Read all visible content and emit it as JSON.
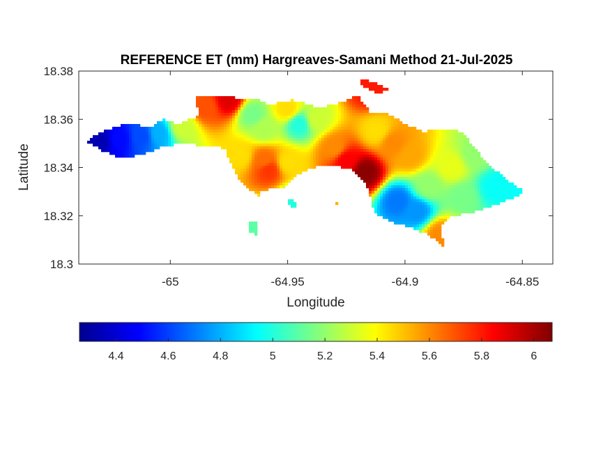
{
  "title": "REFERENCE ET (mm) Hargreaves-Samani Method  21-Jul-2025",
  "xlabel": "Longitude",
  "ylabel": "Latitude",
  "x_ticks": [
    "-65",
    "-64.95",
    "-64.9",
    "-64.85"
  ],
  "y_ticks": [
    "18.38",
    "18.36",
    "18.34",
    "18.32",
    "18.3"
  ],
  "colorbar_ticks": [
    "4.4",
    "4.6",
    "4.8",
    "5",
    "5.2",
    "5.4",
    "5.6",
    "5.8",
    "6"
  ],
  "colormap": "jet",
  "chart_data": {
    "type": "heatmap",
    "title": "REFERENCE ET (mm) Hargreaves-Samani Method  21-Jul-2025",
    "xlabel": "Longitude",
    "ylabel": "Latitude",
    "xlim": [
      -65.039,
      -64.837
    ],
    "ylim": [
      18.3,
      18.38
    ],
    "x_ticks": [
      -65,
      -64.95,
      -64.9,
      -64.85
    ],
    "y_ticks": [
      18.3,
      18.32,
      18.34,
      18.36,
      18.38
    ],
    "colorbar": {
      "min": 4.26,
      "max": 6.07,
      "ticks": [
        4.4,
        4.6,
        4.8,
        5,
        5.2,
        5.4,
        5.6,
        5.8,
        6
      ],
      "orientation": "horizontal",
      "position": "bottom"
    },
    "grid": false,
    "island_outline": [
      [
        -65.036,
        18.351
      ],
      [
        -65.029,
        18.355
      ],
      [
        -65.019,
        18.358
      ],
      [
        -65.008,
        18.357
      ],
      [
        -65.003,
        18.36
      ],
      [
        -64.997,
        18.358
      ],
      [
        -64.988,
        18.3615
      ],
      [
        -64.989,
        18.369
      ],
      [
        -64.98,
        18.37
      ],
      [
        -64.972,
        18.369
      ],
      [
        -64.962,
        18.368
      ],
      [
        -64.958,
        18.366
      ],
      [
        -64.948,
        18.368
      ],
      [
        -64.937,
        18.365
      ],
      [
        -64.93,
        18.366
      ],
      [
        -64.925,
        18.368
      ],
      [
        -64.92,
        18.37
      ],
      [
        -64.915,
        18.363
      ],
      [
        -64.908,
        18.363
      ],
      [
        -64.9,
        18.358
      ],
      [
        -64.892,
        18.355
      ],
      [
        -64.883,
        18.356
      ],
      [
        -64.876,
        18.355
      ],
      [
        -64.87,
        18.348
      ],
      [
        -64.866,
        18.343
      ],
      [
        -64.858,
        18.336
      ],
      [
        -64.849,
        18.33
      ],
      [
        -64.855,
        18.327
      ],
      [
        -64.866,
        18.323
      ],
      [
        -64.872,
        18.321
      ],
      [
        -64.88,
        18.32
      ],
      [
        -64.885,
        18.315
      ],
      [
        -64.883,
        18.307
      ],
      [
        -64.89,
        18.312
      ],
      [
        -64.897,
        18.315
      ],
      [
        -64.905,
        18.317
      ],
      [
        -64.913,
        18.321
      ],
      [
        -64.916,
        18.332
      ],
      [
        -64.922,
        18.339
      ],
      [
        -64.932,
        18.341
      ],
      [
        -64.939,
        18.34
      ],
      [
        -64.946,
        18.337
      ],
      [
        -64.951,
        18.332
      ],
      [
        -64.958,
        18.331
      ],
      [
        -64.965,
        18.33
      ],
      [
        -64.97,
        18.334
      ],
      [
        -64.973,
        18.339
      ],
      [
        -64.977,
        18.348
      ],
      [
        -64.985,
        18.349
      ],
      [
        -64.996,
        18.35
      ],
      [
        -65.005,
        18.348
      ],
      [
        -65.013,
        18.345
      ],
      [
        -65.021,
        18.344
      ],
      [
        -65.029,
        18.347
      ],
      [
        -65.036,
        18.351
      ]
    ],
    "islets": [
      [
        [
          -64.919,
          18.377
        ],
        [
          -64.912,
          18.375
        ],
        [
          -64.906,
          18.372
        ],
        [
          -64.912,
          18.371
        ],
        [
          -64.919,
          18.374
        ]
      ],
      [
        [
          -64.95,
          18.327
        ],
        [
          -64.946,
          18.326
        ],
        [
          -64.946,
          18.323
        ],
        [
          -64.949,
          18.323
        ]
      ],
      [
        [
          -64.966,
          18.318
        ],
        [
          -64.963,
          18.318
        ],
        [
          -64.963,
          18.312
        ],
        [
          -64.966,
          18.313
        ]
      ],
      [
        [
          -64.93,
          18.326
        ],
        [
          -64.928,
          18.326
        ],
        [
          -64.928,
          18.324
        ]
      ],
      [
        [
          -64.964,
          18.33
        ],
        [
          -64.962,
          18.33
        ],
        [
          -64.962,
          18.327
        ]
      ]
    ],
    "value_field_anchors": [
      {
        "lon": -65.03,
        "lat": 18.351,
        "value": 4.35
      },
      {
        "lon": -65.022,
        "lat": 18.352,
        "value": 4.5
      },
      {
        "lon": -65.012,
        "lat": 18.353,
        "value": 4.62
      },
      {
        "lon": -65.005,
        "lat": 18.354,
        "value": 4.8
      },
      {
        "lon": -64.995,
        "lat": 18.357,
        "value": 5.3
      },
      {
        "lon": -64.985,
        "lat": 18.365,
        "value": 5.7
      },
      {
        "lon": -64.975,
        "lat": 18.368,
        "value": 5.9
      },
      {
        "lon": -64.965,
        "lat": 18.362,
        "value": 5.15
      },
      {
        "lon": -64.96,
        "lat": 18.356,
        "value": 5.25
      },
      {
        "lon": -64.97,
        "lat": 18.345,
        "value": 5.45
      },
      {
        "lon": -64.96,
        "lat": 18.343,
        "value": 5.65
      },
      {
        "lon": -64.958,
        "lat": 18.339,
        "value": 5.75
      },
      {
        "lon": -64.95,
        "lat": 18.342,
        "value": 5.45
      },
      {
        "lon": -64.945,
        "lat": 18.358,
        "value": 5.0
      },
      {
        "lon": -64.95,
        "lat": 18.364,
        "value": 5.45
      },
      {
        "lon": -64.938,
        "lat": 18.36,
        "value": 5.3
      },
      {
        "lon": -64.93,
        "lat": 18.348,
        "value": 5.6
      },
      {
        "lon": -64.925,
        "lat": 18.343,
        "value": 5.85
      },
      {
        "lon": -64.917,
        "lat": 18.338,
        "value": 6.05
      },
      {
        "lon": -64.912,
        "lat": 18.355,
        "value": 5.45
      },
      {
        "lon": -64.905,
        "lat": 18.35,
        "value": 5.6
      },
      {
        "lon": -64.898,
        "lat": 18.345,
        "value": 5.55
      },
      {
        "lon": -64.903,
        "lat": 18.326,
        "value": 4.7
      },
      {
        "lon": -64.895,
        "lat": 18.322,
        "value": 4.75
      },
      {
        "lon": -64.89,
        "lat": 18.332,
        "value": 5.2
      },
      {
        "lon": -64.885,
        "lat": 18.312,
        "value": 5.6
      },
      {
        "lon": -64.88,
        "lat": 18.34,
        "value": 5.35
      },
      {
        "lon": -64.87,
        "lat": 18.345,
        "value": 5.2
      },
      {
        "lon": -64.862,
        "lat": 18.332,
        "value": 4.95
      },
      {
        "lon": -64.852,
        "lat": 18.33,
        "value": 4.95
      },
      {
        "lon": -64.875,
        "lat": 18.328,
        "value": 5.15
      },
      {
        "lon": -64.915,
        "lat": 18.372,
        "value": 5.8
      },
      {
        "lon": -64.948,
        "lat": 18.325,
        "value": 5.0
      },
      {
        "lon": -64.965,
        "lat": 18.315,
        "value": 5.1
      }
    ]
  }
}
